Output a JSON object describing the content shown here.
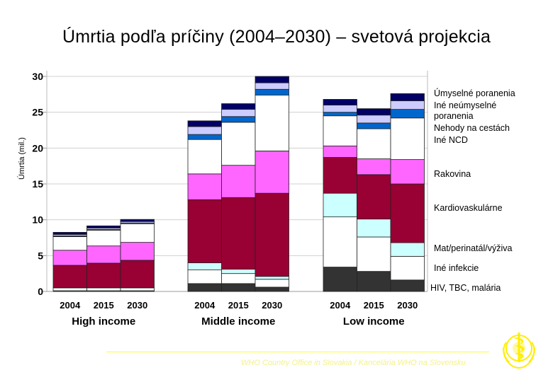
{
  "colors": {
    "hiv_tb_malaria": "#333333",
    "other_infectious": "#ffffff",
    "perinatal_nutrition": "#ccffff",
    "cardiovascular": "#990033",
    "cancer": "#ff66ff",
    "other_ncd": "#ffffff",
    "road_traffic": "#0066cc",
    "other_unintentional": "#ccccff",
    "intentional": "#000066",
    "footer": "#f2f28a",
    "logo": "#ffee00"
  },
  "footer": {
    "text": "WHO Country Office in Slovakia / Kancelária WHO na Slovensku"
  },
  "chart_data": {
    "type": "bar",
    "stacked": true,
    "title": "Úmrtia podľa príčiny (2004–2030) – svetová projekcia",
    "ylabel": "Úmrtia (mil.)",
    "xlabel": "",
    "ylim": [
      0,
      30
    ],
    "yticks": [
      "0",
      "5",
      "10",
      "15",
      "20",
      "25",
      "30"
    ],
    "groups": [
      {
        "name": "High income",
        "categories": [
          "2004",
          "2015",
          "2030"
        ]
      },
      {
        "name": "Middle income",
        "categories": [
          "2004",
          "2015",
          "2030"
        ]
      },
      {
        "name": "Low income",
        "categories": [
          "2004",
          "2015",
          "2030"
        ]
      }
    ],
    "series": [
      {
        "name": "HIV, TBC, malária",
        "color_key": "hiv_tb_malaria",
        "values": [
          0.1,
          0.1,
          0.1,
          1.1,
          1.1,
          0.6,
          3.4,
          2.8,
          1.6
        ]
      },
      {
        "name": "Iné infekcie",
        "color_key": "other_infectious",
        "values": [
          0.4,
          0.4,
          0.4,
          1.9,
          1.4,
          1.1,
          7.0,
          4.8,
          3.3
        ]
      },
      {
        "name": "Mat/perinatál/výživa",
        "color_key": "perinatal_nutrition",
        "values": [
          0.05,
          0.05,
          0.05,
          1.0,
          0.6,
          0.4,
          3.3,
          2.5,
          1.9
        ]
      },
      {
        "name": "Kardiovaskulárne",
        "color_key": "cardiovascular",
        "values": [
          3.1,
          3.4,
          3.8,
          8.8,
          10.0,
          11.6,
          5.0,
          6.2,
          8.2
        ]
      },
      {
        "name": "Rakovina",
        "color_key": "cancer",
        "values": [
          2.1,
          2.4,
          2.5,
          3.6,
          4.5,
          5.9,
          1.6,
          2.2,
          3.4
        ]
      },
      {
        "name": "Iné NCD",
        "color_key": "other_ncd",
        "values": [
          1.9,
          2.2,
          2.6,
          4.8,
          6.0,
          7.8,
          4.2,
          4.2,
          5.8
        ]
      },
      {
        "name": "Nehody na cestách",
        "color_key": "road_traffic",
        "values": [
          0.1,
          0.1,
          0.1,
          0.7,
          0.8,
          0.8,
          0.5,
          0.8,
          1.2
        ]
      },
      {
        "name": "Iné neúmyselné poranenia",
        "color_key": "other_unintentional",
        "values": [
          0.2,
          0.2,
          0.2,
          1.1,
          1.0,
          0.9,
          1.0,
          1.1,
          1.2
        ]
      },
      {
        "name": "Úmyselné poranenia",
        "color_key": "intentional",
        "values": [
          0.3,
          0.3,
          0.3,
          0.8,
          0.8,
          0.9,
          0.8,
          0.9,
          1.0
        ]
      }
    ]
  }
}
